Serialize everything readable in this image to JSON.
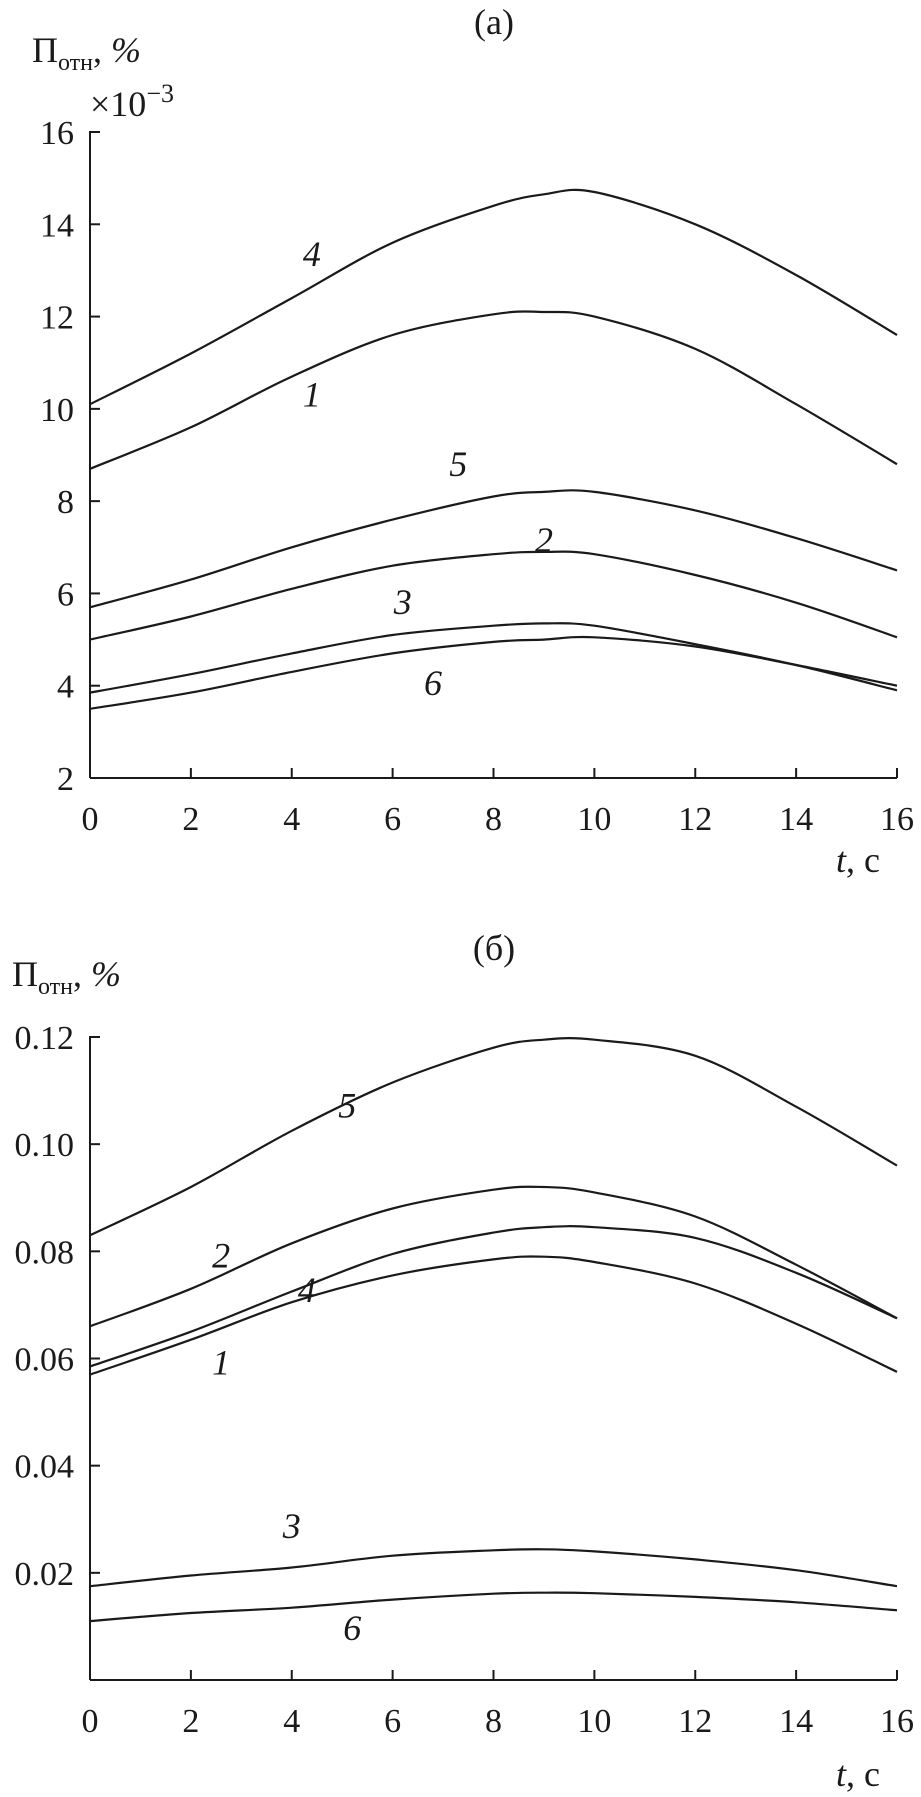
{
  "chart_data": [
    {
      "type": "line",
      "title": "(а)",
      "ylabel": "П",
      "ylabel_sub": "отн",
      "ylabel_unit": ", %",
      "multiplier": "×10",
      "multiplier_exp": "−3",
      "xlabel_var": "t",
      "xlabel_unit": ", с",
      "xlim": [
        0,
        16
      ],
      "ylim": [
        2,
        16
      ],
      "xticks": [
        0,
        2,
        4,
        6,
        8,
        10,
        12,
        14,
        16
      ],
      "yticks": [
        2,
        4,
        6,
        8,
        10,
        12,
        14,
        16
      ],
      "ytick_labels": [
        "2",
        "4",
        "6",
        "8",
        "10",
        "12",
        "14",
        "16"
      ],
      "x": [
        0,
        2,
        4,
        6,
        8,
        9,
        10,
        12,
        14,
        16
      ],
      "series": [
        {
          "name": "4",
          "values": [
            10.1,
            11.2,
            12.4,
            13.6,
            14.4,
            14.65,
            14.7,
            14.0,
            12.9,
            11.6
          ]
        },
        {
          "name": "1",
          "values": [
            8.7,
            9.6,
            10.7,
            11.6,
            12.05,
            12.1,
            12.0,
            11.3,
            10.1,
            8.8
          ]
        },
        {
          "name": "5",
          "values": [
            5.7,
            6.3,
            7.0,
            7.6,
            8.1,
            8.2,
            8.2,
            7.8,
            7.2,
            6.5
          ]
        },
        {
          "name": "2",
          "values": [
            5.0,
            5.5,
            6.1,
            6.6,
            6.85,
            6.9,
            6.85,
            6.4,
            5.8,
            5.05
          ]
        },
        {
          "name": "3",
          "values": [
            3.85,
            4.25,
            4.7,
            5.1,
            5.3,
            5.35,
            5.3,
            4.9,
            4.45,
            3.9
          ]
        },
        {
          "name": "6",
          "values": [
            3.5,
            3.85,
            4.3,
            4.7,
            4.95,
            5.0,
            5.05,
            4.85,
            4.45,
            4.0
          ]
        }
      ],
      "curve_labels": [
        {
          "text": "4",
          "x": 4.4,
          "y": 13.1
        },
        {
          "text": "1",
          "x": 4.4,
          "y": 10.05
        },
        {
          "text": "5",
          "x": 7.3,
          "y": 8.55
        },
        {
          "text": "2",
          "x": 9.0,
          "y": 6.9
        },
        {
          "text": "3",
          "x": 6.2,
          "y": 5.55
        },
        {
          "text": "6",
          "x": 6.8,
          "y": 3.8
        }
      ]
    },
    {
      "type": "line",
      "title": "(б)",
      "ylabel": "П",
      "ylabel_sub": "отн",
      "ylabel_unit": ", %",
      "xlabel_var": "t",
      "xlabel_unit": ", с",
      "xlim": [
        0,
        16
      ],
      "ylim": [
        0,
        0.12
      ],
      "xticks": [
        0,
        2,
        4,
        6,
        8,
        10,
        12,
        14,
        16
      ],
      "yticks": [
        0.02,
        0.04,
        0.06,
        0.08,
        0.1,
        0.12
      ],
      "ytick_labels": [
        "0.02",
        "0.04",
        "0.06",
        "0.08",
        "0.10",
        "0.12"
      ],
      "x": [
        0,
        2,
        4,
        6,
        8,
        9,
        10,
        12,
        14,
        16
      ],
      "series": [
        {
          "name": "5",
          "values": [
            0.083,
            0.092,
            0.1025,
            0.1115,
            0.118,
            0.1195,
            0.1195,
            0.1165,
            0.107,
            0.096
          ]
        },
        {
          "name": "2",
          "values": [
            0.066,
            0.073,
            0.0815,
            0.088,
            0.0915,
            0.092,
            0.091,
            0.0865,
            0.0775,
            0.0675
          ]
        },
        {
          "name": "4",
          "values": [
            0.0585,
            0.065,
            0.0725,
            0.0795,
            0.0835,
            0.0845,
            0.0845,
            0.0825,
            0.076,
            0.0675
          ]
        },
        {
          "name": "1",
          "values": [
            0.057,
            0.0635,
            0.0705,
            0.0755,
            0.0785,
            0.079,
            0.078,
            0.074,
            0.0665,
            0.0575
          ]
        },
        {
          "name": "3",
          "values": [
            0.0175,
            0.0195,
            0.021,
            0.0232,
            0.0242,
            0.0244,
            0.024,
            0.0225,
            0.0205,
            0.0175
          ]
        },
        {
          "name": "6",
          "values": [
            0.011,
            0.0125,
            0.0135,
            0.015,
            0.0161,
            0.0163,
            0.0162,
            0.0155,
            0.0145,
            0.013
          ]
        }
      ],
      "curve_labels": [
        {
          "text": "5",
          "x": 5.1,
          "y": 0.105
        },
        {
          "text": "2",
          "x": 2.6,
          "y": 0.077
        },
        {
          "text": "4",
          "x": 4.3,
          "y": 0.0705
        },
        {
          "text": "1",
          "x": 2.6,
          "y": 0.057
        },
        {
          "text": "3",
          "x": 4.0,
          "y": 0.0265
        },
        {
          "text": "6",
          "x": 5.2,
          "y": 0.0075
        }
      ]
    }
  ]
}
